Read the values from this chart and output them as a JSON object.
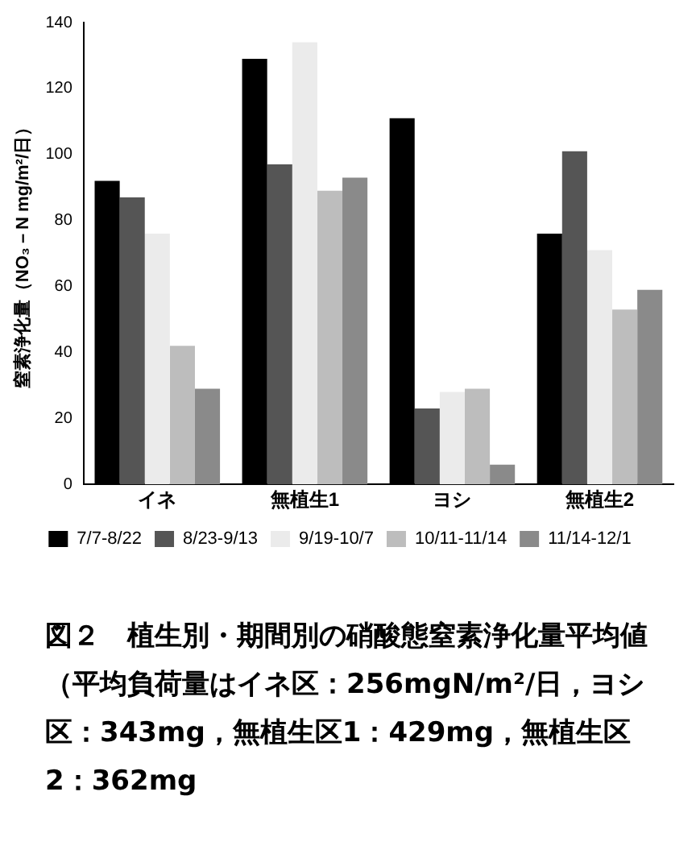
{
  "chart_data": {
    "type": "bar",
    "ylabel": "窒素浄化量（NO₃－N mg/m²/日）",
    "categories": [
      "イネ",
      "無植生1",
      "ヨシ",
      "無植生2"
    ],
    "series": [
      {
        "name": "7/7-8/22",
        "color": "#000000",
        "values": [
          92,
          129,
          111,
          76
        ]
      },
      {
        "name": "8/23-9/13",
        "color": "#555555",
        "values": [
          87,
          97,
          23,
          101
        ]
      },
      {
        "name": "9/19-10/7",
        "color": "#ebebeb",
        "values": [
          76,
          134,
          28,
          71
        ]
      },
      {
        "name": "10/11-11/14",
        "color": "#bdbdbd",
        "values": [
          42,
          89,
          29,
          53
        ]
      },
      {
        "name": "11/14-12/1",
        "color": "#8a8a8a",
        "values": [
          29,
          93,
          6,
          59
        ]
      }
    ],
    "ylim": [
      0,
      140
    ],
    "yticks": [
      0,
      20,
      40,
      60,
      80,
      100,
      120,
      140
    ],
    "grid": false,
    "legend": "bottom",
    "annotations": [
      "図２　植生別・期間別の硝酸態窒素浄化量平均値（平均負荷量はイネ区：256mgN/m²/日，ヨシ区：343mg，無植生区1：429mg，無植生区2：362mg"
    ]
  }
}
